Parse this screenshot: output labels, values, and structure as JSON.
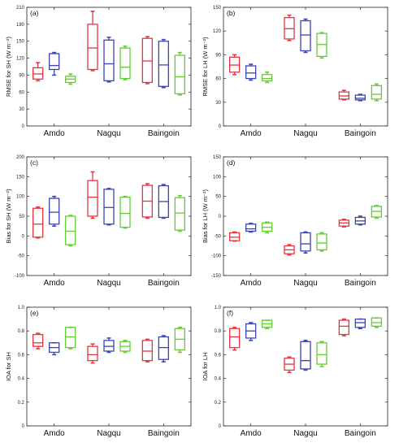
{
  "colors": {
    "s1": "#e8343c",
    "s2": "#3a45b4",
    "s3": "#66cc33"
  },
  "chart_data": [
    {
      "type": "box",
      "label": "(a)",
      "ylabel": "RMSE for SH (W m⁻²)",
      "ylim": [
        0,
        210
      ],
      "yticks": [
        0,
        30,
        60,
        90,
        120,
        150,
        180,
        210
      ],
      "categories": [
        "Amdo",
        "Nagqu",
        "Baingoin"
      ],
      "boxes": [
        [
          [
            80,
            83,
            92,
            103,
            112
          ],
          [
            90,
            100,
            107,
            128,
            130
          ],
          [
            74,
            77,
            83,
            88,
            92
          ]
        ],
        [
          [
            98,
            100,
            138,
            180,
            203
          ],
          [
            78,
            80,
            110,
            152,
            157
          ],
          [
            82,
            84,
            104,
            138,
            141
          ]
        ],
        [
          [
            75,
            77,
            115,
            155,
            158
          ],
          [
            68,
            70,
            108,
            150,
            153
          ],
          [
            55,
            57,
            87,
            125,
            130
          ]
        ]
      ]
    },
    {
      "type": "box",
      "label": "(b)",
      "ylabel": "RMSE for LH (W m⁻²)",
      "ylim": [
        0,
        150
      ],
      "yticks": [
        0,
        30,
        60,
        90,
        120,
        150
      ],
      "categories": [
        "Amdo",
        "Nagqu",
        "Baingoin"
      ],
      "boxes": [
        [
          [
            65,
            68,
            77,
            87,
            90
          ],
          [
            58,
            60,
            67,
            76,
            78
          ],
          [
            55,
            57,
            60,
            65,
            68
          ]
        ],
        [
          [
            108,
            110,
            123,
            137,
            140
          ],
          [
            93,
            95,
            115,
            133,
            135
          ],
          [
            86,
            88,
            103,
            117,
            118
          ]
        ],
        [
          [
            33,
            34,
            38,
            43,
            45
          ],
          [
            32,
            33,
            35,
            39,
            40
          ],
          [
            32,
            34,
            40,
            51,
            53
          ]
        ]
      ]
    },
    {
      "type": "box",
      "label": "(c)",
      "ylabel": "Bias for SH (W m⁻²)",
      "ylim": [
        -100,
        200
      ],
      "yticks": [
        -100,
        -50,
        0,
        50,
        100,
        150,
        200
      ],
      "categories": [
        "Amdo",
        "Nagqu",
        "Baingoin"
      ],
      "boxes": [
        [
          [
            -5,
            -3,
            30,
            70,
            73
          ],
          [
            25,
            30,
            60,
            95,
            100
          ],
          [
            -25,
            -22,
            12,
            50,
            52
          ]
        ],
        [
          [
            45,
            50,
            98,
            140,
            162
          ],
          [
            28,
            30,
            72,
            118,
            120
          ],
          [
            20,
            22,
            57,
            98,
            100
          ]
        ],
        [
          [
            45,
            48,
            88,
            128,
            132
          ],
          [
            45,
            47,
            87,
            127,
            130
          ],
          [
            12,
            15,
            58,
            97,
            102
          ]
        ]
      ]
    },
    {
      "type": "box",
      "label": "(d)",
      "ylabel": "Bias for LH (W m⁻²)",
      "ylim": [
        -150,
        150
      ],
      "yticks": [
        -150,
        -100,
        -50,
        0,
        50,
        100,
        150
      ],
      "categories": [
        "Amdo",
        "Nagqu",
        "Baingoin"
      ],
      "boxes": [
        [
          [
            -63,
            -62,
            -53,
            -42,
            -40
          ],
          [
            -40,
            -38,
            -32,
            -20,
            -18
          ],
          [
            -42,
            -38,
            -28,
            -17,
            -15
          ]
        ],
        [
          [
            -98,
            -95,
            -85,
            -75,
            -72
          ],
          [
            -93,
            -88,
            -70,
            -42,
            -40
          ],
          [
            -88,
            -85,
            -68,
            -45,
            -42
          ]
        ],
        [
          [
            -27,
            -25,
            -17,
            -10,
            -8
          ],
          [
            -22,
            -20,
            -12,
            -3,
            0
          ],
          [
            -5,
            -2,
            12,
            25,
            27
          ]
        ]
      ]
    },
    {
      "type": "box",
      "label": "(e)",
      "ylabel": "IOA for SH",
      "ylim": [
        0,
        1
      ],
      "yticks": [
        0,
        0.2,
        0.4,
        0.6,
        0.8,
        1.0
      ],
      "categories": [
        "Amdo",
        "Nagqu",
        "Baingoin"
      ],
      "boxes": [
        [
          [
            0.65,
            0.67,
            0.7,
            0.77,
            0.78
          ],
          [
            0.6,
            0.62,
            0.66,
            0.7,
            0.7
          ],
          [
            0.65,
            0.66,
            0.75,
            0.83,
            0.83
          ]
        ],
        [
          [
            0.53,
            0.55,
            0.6,
            0.67,
            0.69
          ],
          [
            0.62,
            0.63,
            0.67,
            0.72,
            0.74
          ],
          [
            0.62,
            0.63,
            0.67,
            0.71,
            0.72
          ]
        ],
        [
          [
            0.54,
            0.55,
            0.63,
            0.72,
            0.73
          ],
          [
            0.54,
            0.56,
            0.66,
            0.75,
            0.76
          ],
          [
            0.62,
            0.64,
            0.73,
            0.82,
            0.83
          ]
        ]
      ]
    },
    {
      "type": "box",
      "label": "(f)",
      "ylabel": "IOA for LH",
      "ylim": [
        0,
        1
      ],
      "yticks": [
        0,
        0.2,
        0.4,
        0.6,
        0.8,
        1.0
      ],
      "categories": [
        "Amdo",
        "Nagqu",
        "Baingoin"
      ],
      "boxes": [
        [
          [
            0.64,
            0.66,
            0.75,
            0.82,
            0.83
          ],
          [
            0.72,
            0.74,
            0.8,
            0.86,
            0.87
          ],
          [
            0.82,
            0.83,
            0.86,
            0.89,
            0.89
          ]
        ],
        [
          [
            0.45,
            0.47,
            0.52,
            0.57,
            0.58
          ],
          [
            0.47,
            0.48,
            0.55,
            0.71,
            0.72
          ],
          [
            0.5,
            0.52,
            0.6,
            0.7,
            0.71
          ]
        ],
        [
          [
            0.76,
            0.77,
            0.84,
            0.89,
            0.9
          ],
          [
            0.82,
            0.83,
            0.87,
            0.9,
            0.9
          ],
          [
            0.83,
            0.84,
            0.87,
            0.91,
            0.91
          ]
        ]
      ]
    }
  ]
}
